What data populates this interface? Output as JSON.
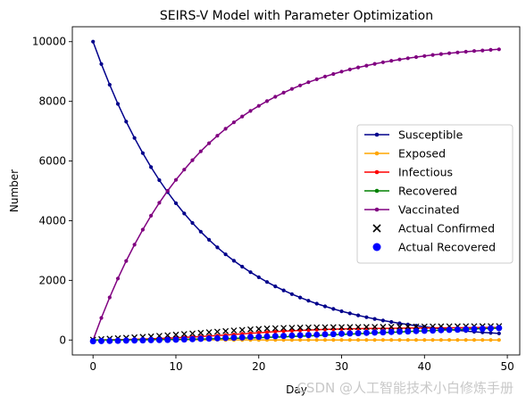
{
  "watermark": "CSDN @人工智能技术小白修炼手册",
  "chart_data": {
    "type": "line",
    "title": "SEIRS-V Model with Parameter Optimization",
    "xlabel": "Day",
    "ylabel": "Number",
    "xlim": [
      -2.5,
      51.5
    ],
    "ylim": [
      -500,
      10500
    ],
    "xticks": [
      0,
      10,
      20,
      30,
      40,
      50
    ],
    "yticks": [
      0,
      2000,
      4000,
      6000,
      8000,
      10000
    ],
    "legend_position": "center-right",
    "grid": false,
    "x": [
      0,
      1,
      2,
      3,
      4,
      5,
      6,
      7,
      8,
      9,
      10,
      11,
      12,
      13,
      14,
      15,
      16,
      17,
      18,
      19,
      20,
      21,
      22,
      23,
      24,
      25,
      26,
      27,
      28,
      29,
      30,
      31,
      32,
      33,
      34,
      35,
      36,
      37,
      38,
      39,
      40,
      41,
      42,
      43,
      44,
      45,
      46,
      47,
      48,
      49
    ],
    "series": [
      {
        "name": "Susceptible",
        "color": "#00008b",
        "marker": "dot",
        "values": [
          10000,
          9250,
          8556,
          7914,
          7321,
          6772,
          6264,
          5794,
          5360,
          4958,
          4586,
          4242,
          3924,
          3630,
          3358,
          3106,
          2873,
          2658,
          2459,
          2274,
          2104,
          1946,
          1800,
          1665,
          1540,
          1425,
          1318,
          1219,
          1128,
          1043,
          965,
          893,
          826,
          764,
          707,
          654,
          605,
          560,
          518,
          479,
          443,
          410,
          379,
          350,
          324,
          300,
          277,
          256,
          237,
          220
        ]
      },
      {
        "name": "Exposed",
        "color": "#ffa500",
        "marker": "dot",
        "values": [
          0,
          5,
          9,
          12,
          14,
          15,
          15,
          15,
          14,
          13,
          12,
          11,
          10,
          9,
          8,
          7,
          6,
          5,
          5,
          4,
          4,
          3,
          3,
          3,
          2,
          2,
          2,
          2,
          1,
          1,
          1,
          1,
          1,
          1,
          1,
          1,
          1,
          1,
          1,
          1,
          1,
          1,
          1,
          1,
          1,
          1,
          1,
          1,
          1,
          1
        ]
      },
      {
        "name": "Infectious",
        "color": "#ff0000",
        "marker": "dot",
        "values": [
          0,
          3,
          7,
          12,
          18,
          25,
          33,
          42,
          52,
          63,
          75,
          88,
          102,
          117,
          133,
          150,
          168,
          187,
          206,
          225,
          244,
          262,
          279,
          295,
          310,
          323,
          335,
          346,
          355,
          363,
          370,
          376,
          381,
          385,
          389,
          392,
          395,
          398,
          400,
          402,
          404,
          406,
          408,
          410,
          412,
          414,
          416,
          418,
          420,
          422
        ]
      },
      {
        "name": "Recovered",
        "color": "#008000",
        "marker": "dot",
        "values": [
          0,
          1,
          2,
          3,
          5,
          7,
          9,
          11,
          14,
          17,
          20,
          24,
          28,
          33,
          38,
          44,
          50,
          57,
          64,
          72,
          80,
          89,
          98,
          108,
          118,
          129,
          140,
          152,
          164,
          176,
          188,
          200,
          212,
          224,
          236,
          248,
          260,
          272,
          284,
          296,
          308,
          319,
          330,
          341,
          352,
          362,
          372,
          382,
          391,
          400
        ]
      },
      {
        "name": "Vaccinated",
        "color": "#800080",
        "marker": "dot",
        "values": [
          0,
          741,
          1428,
          2063,
          2651,
          3196,
          3700,
          4167,
          4599,
          4999,
          5369,
          5712,
          6029,
          6323,
          6595,
          6846,
          7079,
          7295,
          7494,
          7679,
          7850,
          8008,
          8155,
          8290,
          8416,
          8532,
          8640,
          8739,
          8831,
          8916,
          8995,
          9068,
          9136,
          9198,
          9256,
          9309,
          9359,
          9404,
          9446,
          9485,
          9521,
          9554,
          9585,
          9613,
          9639,
          9663,
          9686,
          9706,
          9725,
          9743
        ]
      }
    ],
    "scatter_series": [
      {
        "name": "Actual Confirmed",
        "marker": "x",
        "color": "#000000",
        "values": [
          10,
          30,
          45,
          60,
          75,
          90,
          105,
          120,
          140,
          160,
          180,
          200,
          220,
          240,
          260,
          280,
          300,
          320,
          340,
          355,
          370,
          385,
          395,
          405,
          410,
          415,
          420,
          425,
          428,
          430,
          432,
          434,
          436,
          438,
          440,
          442,
          444,
          446,
          448,
          450,
          452,
          454,
          456,
          458,
          460,
          462,
          463,
          464,
          465,
          466
        ]
      },
      {
        "name": "Actual Recovered",
        "marker": "circle",
        "color": "#0000ff",
        "values": [
          -40,
          -35,
          -30,
          -25,
          -20,
          -15,
          -10,
          -5,
          0,
          5,
          10,
          20,
          30,
          40,
          50,
          60,
          70,
          80,
          90,
          100,
          110,
          120,
          130,
          140,
          150,
          160,
          170,
          180,
          190,
          200,
          210,
          220,
          230,
          240,
          250,
          260,
          270,
          280,
          290,
          300,
          310,
          320,
          330,
          340,
          350,
          360,
          370,
          380,
          390,
          400
        ]
      }
    ]
  }
}
